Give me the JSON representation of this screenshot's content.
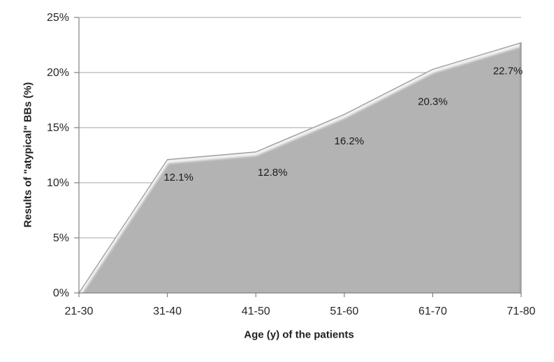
{
  "chart_data": {
    "type": "area",
    "title": "",
    "categories": [
      "21-30",
      "31-40",
      "41-50",
      "51-60",
      "61-70",
      "71-80"
    ],
    "values": [
      0,
      12.1,
      12.8,
      16.2,
      20.3,
      22.7
    ],
    "data_labels": [
      null,
      "12.1%",
      "12.8%",
      "16.2%",
      "20.3%",
      "22.7%"
    ],
    "xlabel": "Age (y) of the patients",
    "ylabel": "Results of \"atypical\" BBs (%)",
    "ylim": [
      0,
      25
    ],
    "yticks": [
      0,
      5,
      10,
      15,
      20,
      25
    ],
    "ytick_labels": [
      "0%",
      "5%",
      "10%",
      "15%",
      "20%",
      "25%"
    ],
    "grid": true,
    "legend": "none",
    "colors": {
      "area_fill": "#b3b3b3",
      "area_edge": "#9d9d9d",
      "bevel_highlight": "#ffffff",
      "bevel_shadow": "#8d8d8d",
      "gridline": "#a6a6a6",
      "axis_line": "#808080",
      "tick_text": "#262626",
      "label_text": "#1a1a1a"
    },
    "label_offsets": [
      null,
      [
        16,
        25
      ],
      [
        24,
        29
      ],
      [
        7,
        38
      ],
      [
        0,
        46
      ],
      [
        -19,
        40
      ]
    ]
  }
}
